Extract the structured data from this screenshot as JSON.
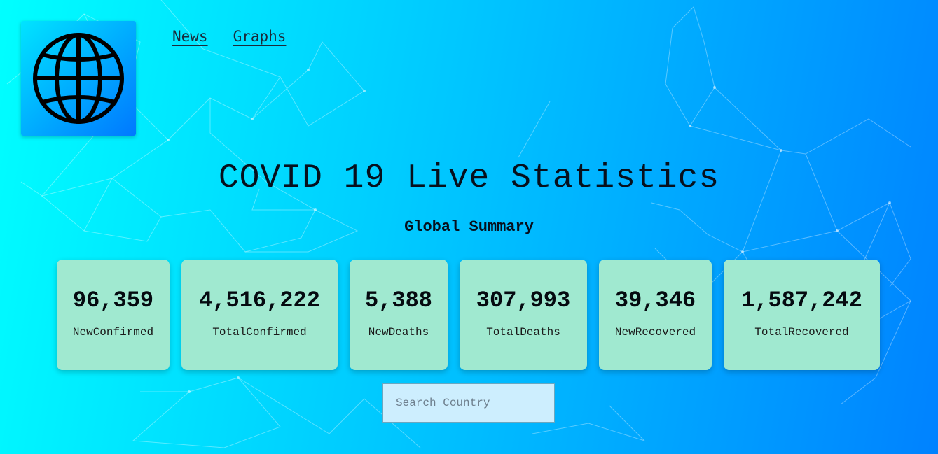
{
  "nav": {
    "news_label": "News",
    "graphs_label": "Graphs"
  },
  "header": {
    "title": "COVID 19 Live Statistics",
    "subtitle": "Global Summary"
  },
  "summary": [
    {
      "value": "96,359",
      "label": "NewConfirmed"
    },
    {
      "value": "4,516,222",
      "label": "TotalConfirmed"
    },
    {
      "value": "5,388",
      "label": "NewDeaths"
    },
    {
      "value": "307,993",
      "label": "TotalDeaths"
    },
    {
      "value": "39,346",
      "label": "NewRecovered"
    },
    {
      "value": "1,587,242",
      "label": "TotalRecovered"
    }
  ],
  "search": {
    "placeholder": "Search Country",
    "value": ""
  },
  "icons": {
    "logo": "globe-icon"
  },
  "colors": {
    "card_bg": "#a0e9d0",
    "gradient_start": "#00ffff",
    "gradient_end": "#0082ff"
  }
}
